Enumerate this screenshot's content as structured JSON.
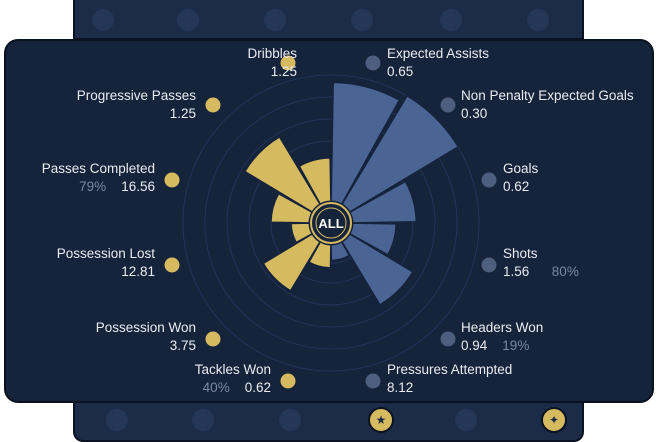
{
  "center_label": "ALL",
  "colors": {
    "gold": "#d6ba60",
    "blue": "#4a6493",
    "panel": "#15233b"
  },
  "metrics": [
    {
      "name": "Dribbles",
      "value": "1.25",
      "pct": "",
      "group": "gold",
      "fraction": 0.34
    },
    {
      "name": "Progressive Passes",
      "value": "1.25",
      "pct": "",
      "group": "gold",
      "fraction": 0.62
    },
    {
      "name": "Passes Completed",
      "value": "16.56",
      "pct": "79%",
      "group": "gold",
      "fraction": 0.3
    },
    {
      "name": "Possession Lost",
      "value": "12.81",
      "pct": "",
      "group": "gold",
      "fraction": 0.14
    },
    {
      "name": "Possession Won",
      "value": "3.75",
      "pct": "",
      "group": "gold",
      "fraction": 0.45
    },
    {
      "name": "Tackles Won",
      "value": "0.62",
      "pct": "40%",
      "group": "gold",
      "fraction": 0.18
    },
    {
      "name": "Pressures Attempted",
      "value": "8.12",
      "pct": "",
      "group": "blue",
      "fraction": 0.12
    },
    {
      "name": "Headers Won",
      "value": "0.94",
      "pct": "19%",
      "group": "blue",
      "fraction": 0.58
    },
    {
      "name": "Shots",
      "value": "1.56",
      "pct": "80%",
      "group": "blue",
      "fraction": 0.34
    },
    {
      "name": "Goals",
      "value": "0.62",
      "pct": "",
      "group": "blue",
      "fraction": 0.5
    },
    {
      "name": "Non Penalty Expected Goals",
      "value": "0.30",
      "pct": "",
      "group": "blue",
      "fraction": 1.0
    },
    {
      "name": "Expected Assists",
      "value": "0.65",
      "pct": "",
      "group": "blue",
      "fraction": 0.94
    }
  ],
  "top_tab_icons": [
    "anchor-icon",
    "mail-icon",
    "cloud-icon",
    "hammer-sickle-icon",
    "target-icon",
    "leaf-icon"
  ],
  "bottom_tab_icons": [
    "swirl-icon",
    "gear-icon",
    "phone-icon",
    "wizard-icon",
    "flower-icon",
    "fox-icon"
  ],
  "active_bottom_tab": "wizard-icon"
}
